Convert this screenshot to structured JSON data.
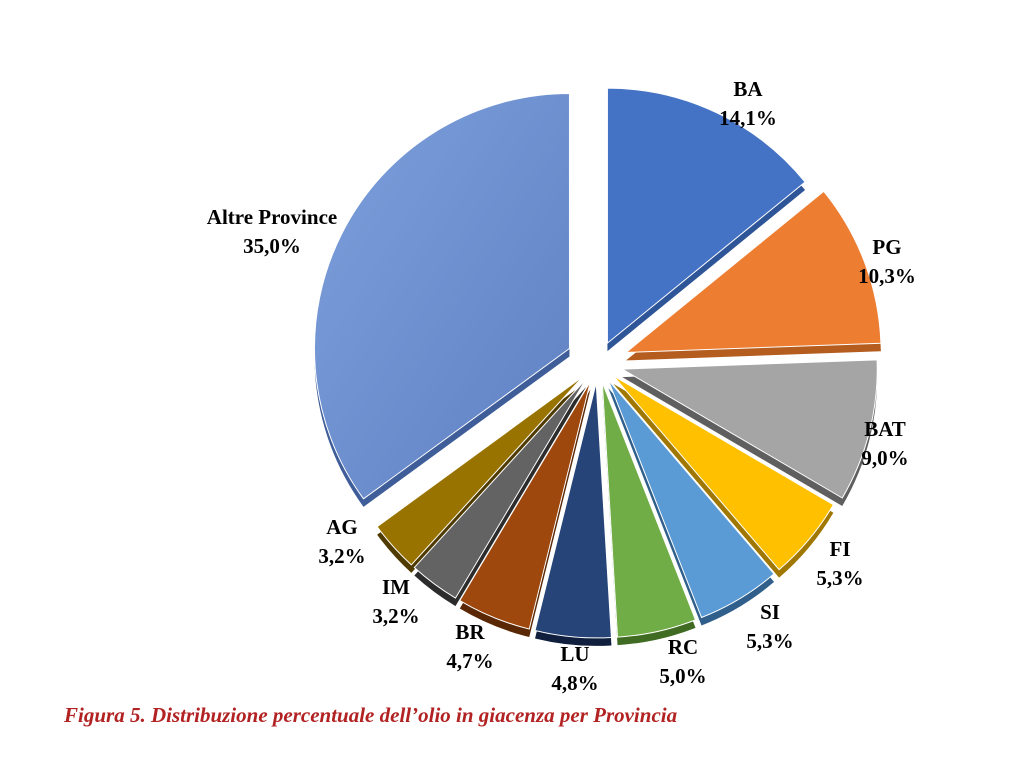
{
  "chart_data": {
    "type": "pie",
    "exploded": true,
    "style": "3d",
    "slices": [
      {
        "label": "BA",
        "value": 14.1,
        "display": "14,1%",
        "color": "#4472c4",
        "side": "#2e5597"
      },
      {
        "label": "PG",
        "value": 10.3,
        "display": "10,3%",
        "color": "#ed7d31",
        "side": "#b55c1f"
      },
      {
        "label": "BAT",
        "value": 9.0,
        "display": "9,0%",
        "color": "#a5a5a5",
        "side": "#5f5f5f"
      },
      {
        "label": "FI",
        "value": 5.3,
        "display": "5,3%",
        "color": "#ffc000",
        "side": "#a07700"
      },
      {
        "label": "SI",
        "value": 5.3,
        "display": "5,3%",
        "color": "#5b9bd5",
        "side": "#2f5f8a"
      },
      {
        "label": "RC",
        "value": 5.0,
        "display": "5,0%",
        "color": "#70ad47",
        "side": "#3f6b22"
      },
      {
        "label": "LU",
        "value": 4.8,
        "display": "4,8%",
        "color": "#264478",
        "side": "#0f1f3d"
      },
      {
        "label": "BR",
        "value": 4.7,
        "display": "4,7%",
        "color": "#9e480e",
        "side": "#5a2805"
      },
      {
        "label": "IM",
        "value": 3.2,
        "display": "3,2%",
        "color": "#636363",
        "side": "#2c2c2c"
      },
      {
        "label": "AG",
        "value": 3.2,
        "display": "3,2%",
        "color": "#997300",
        "side": "#4f3b00"
      },
      {
        "label": "Altre Province",
        "value": 35.0,
        "display": "35,0%",
        "color": "#6f91d0",
        "side": "#3e5d99"
      }
    ]
  },
  "caption": "Figura 5. Distribuzione percentuale dell’olio in giacenza per Provincia"
}
